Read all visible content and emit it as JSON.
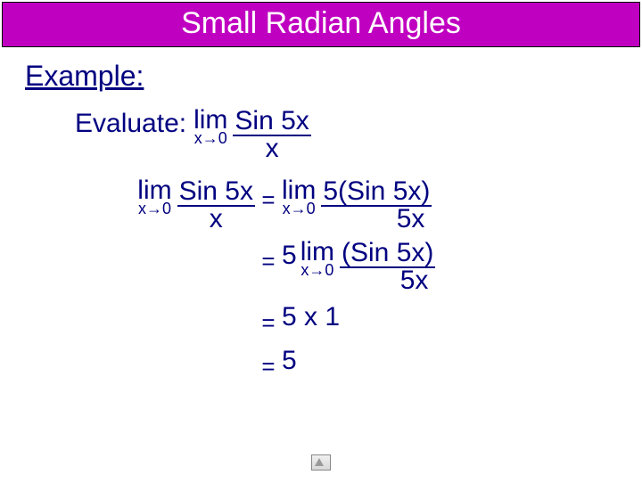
{
  "colors": {
    "title_bg": "#c000c0",
    "title_fg": "#ffffff",
    "body_text": "#000080",
    "frac_rule": "#000080",
    "page_bg": "#ffffff"
  },
  "typography": {
    "family": "Comic Sans MS",
    "title_fontsize_pt": 26,
    "body_fontsize_pt": 22,
    "subscript_fontsize_pt": 13
  },
  "title": "Small Radian Angles",
  "example_label": "Example:",
  "evaluate": {
    "label": "Evaluate:",
    "lim": "lim",
    "approach": "x→0",
    "numerator": "Sin 5x",
    "denominator": "x"
  },
  "steps": {
    "left": {
      "lim": "lim",
      "approach": "x→0",
      "numerator": "Sin 5x",
      "denominator": "x"
    },
    "s1": {
      "eq": "=",
      "lim": "lim",
      "approach": "x→0",
      "numerator": "5(Sin 5x)",
      "denominator": "5x"
    },
    "s2": {
      "eq": "=",
      "coef": "5",
      "lim": "lim",
      "approach": "x→0",
      "numerator": "(Sin 5x)",
      "denominator": "5x"
    },
    "s3": {
      "eq": "=",
      "rhs": "5 x 1"
    },
    "s4": {
      "eq": "=",
      "rhs": "5"
    }
  }
}
